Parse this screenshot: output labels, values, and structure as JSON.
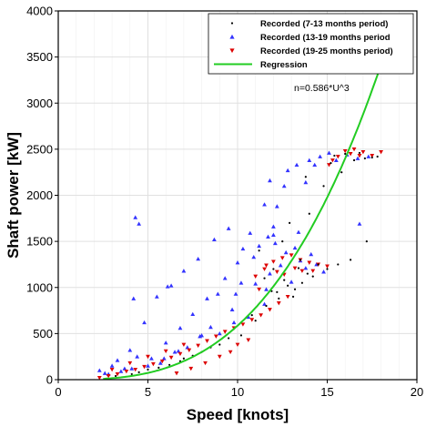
{
  "chart_data": {
    "type": "scatter",
    "xlabel": "Speed [knots]",
    "ylabel": "Shaft power [kW]",
    "xlim": [
      0,
      20
    ],
    "ylim": [
      0,
      4000
    ],
    "xticks": [
      0,
      5,
      10,
      15,
      20
    ],
    "yticks": [
      0,
      500,
      1000,
      1500,
      2000,
      2500,
      3000,
      3500,
      4000
    ],
    "grid": true,
    "legend_position": "top-right",
    "annotation": "n=0.586*U^3",
    "colors": {
      "recorded_7_13": "#000000",
      "recorded_13_19": "#3333ff",
      "recorded_19_25": "#dd0000",
      "regression": "#22cc22",
      "grid": "#e0e0e0"
    },
    "series": [
      {
        "name": "Recorded (7-13 months period)",
        "marker": "dot",
        "points": [
          [
            3.2,
            40
          ],
          [
            4.1,
            60
          ],
          [
            5.0,
            110
          ],
          [
            6.2,
            160
          ],
          [
            7.0,
            230
          ],
          [
            8.0,
            300
          ],
          [
            9.0,
            380
          ],
          [
            10.2,
            480
          ],
          [
            11.0,
            640
          ],
          [
            11.6,
            800
          ],
          [
            12.2,
            950
          ],
          [
            12.8,
            1020
          ],
          [
            13.1,
            900
          ],
          [
            13.6,
            1050
          ],
          [
            14.2,
            1120
          ],
          [
            15.0,
            1200
          ],
          [
            15.6,
            1250
          ],
          [
            16.3,
            1300
          ],
          [
            17.2,
            1500
          ],
          [
            12.0,
            1200
          ],
          [
            11.5,
            1100
          ],
          [
            13.5,
            1300
          ],
          [
            12.5,
            1500
          ],
          [
            14.0,
            1800
          ],
          [
            13.8,
            2200
          ],
          [
            15.2,
            2350
          ],
          [
            16.0,
            2450
          ],
          [
            17.1,
            2400
          ],
          [
            16.5,
            2380
          ],
          [
            17.8,
            2420
          ],
          [
            14.8,
            2100
          ],
          [
            15.8,
            2250
          ],
          [
            12.9,
            1700
          ],
          [
            10.8,
            700
          ],
          [
            9.5,
            450
          ],
          [
            8.5,
            350
          ],
          [
            7.5,
            260
          ],
          [
            6.8,
            200
          ],
          [
            5.6,
            130
          ],
          [
            4.5,
            80
          ],
          [
            13.2,
            980
          ],
          [
            12.6,
            1080
          ],
          [
            13.9,
            1150
          ],
          [
            11.9,
            960
          ],
          [
            15.4,
            2430
          ],
          [
            16.8,
            2460
          ],
          [
            17.5,
            2410
          ],
          [
            14.5,
            1250
          ],
          [
            12.3,
            880
          ],
          [
            13.4,
            1210
          ],
          [
            11.2,
            1400
          ]
        ]
      },
      {
        "name": "Recorded (13-19 months period",
        "marker": "triangle-up",
        "points": [
          [
            2.3,
            100
          ],
          [
            2.6,
            70
          ],
          [
            3.0,
            150
          ],
          [
            3.3,
            210
          ],
          [
            3.7,
            120
          ],
          [
            4.0,
            320
          ],
          [
            4.3,
            1760
          ],
          [
            4.5,
            1690
          ],
          [
            4.2,
            880
          ],
          [
            4.4,
            250
          ],
          [
            4.8,
            620
          ],
          [
            5.2,
            230
          ],
          [
            5.5,
            900
          ],
          [
            5.7,
            180
          ],
          [
            6.0,
            400
          ],
          [
            6.3,
            1020
          ],
          [
            6.5,
            300
          ],
          [
            6.8,
            560
          ],
          [
            7.0,
            1180
          ],
          [
            7.2,
            350
          ],
          [
            7.5,
            710
          ],
          [
            7.8,
            1310
          ],
          [
            8.0,
            480
          ],
          [
            8.3,
            880
          ],
          [
            8.7,
            1520
          ],
          [
            9.0,
            500
          ],
          [
            9.3,
            1100
          ],
          [
            9.5,
            1640
          ],
          [
            9.8,
            620
          ],
          [
            10.0,
            1270
          ],
          [
            10.3,
            1420
          ],
          [
            10.6,
            680
          ],
          [
            10.9,
            1330
          ],
          [
            11.2,
            1450
          ],
          [
            11.5,
            820
          ],
          [
            11.8,
            1150
          ],
          [
            12.1,
            1480
          ],
          [
            12.4,
            1240
          ],
          [
            12.7,
            1380
          ],
          [
            13.0,
            1060
          ],
          [
            13.2,
            1430
          ],
          [
            13.5,
            1290
          ],
          [
            13.8,
            1210
          ],
          [
            14.1,
            1360
          ],
          [
            14.4,
            1250
          ],
          [
            14.8,
            1170
          ],
          [
            12.2,
            1880
          ],
          [
            12.0,
            1660
          ],
          [
            11.7,
            1550
          ],
          [
            11.5,
            1900
          ],
          [
            12.6,
            2100
          ],
          [
            11.8,
            2160
          ],
          [
            11.6,
            980
          ],
          [
            12.8,
            2270
          ],
          [
            13.3,
            2330
          ],
          [
            14.0,
            2380
          ],
          [
            14.6,
            2420
          ],
          [
            15.1,
            2460
          ],
          [
            15.5,
            2380
          ],
          [
            16.1,
            2440
          ],
          [
            16.7,
            2400
          ],
          [
            17.3,
            2420
          ],
          [
            14.3,
            2330
          ],
          [
            13.8,
            2140
          ],
          [
            12.0,
            1570
          ],
          [
            11.0,
            1040
          ],
          [
            10.2,
            1050
          ],
          [
            9.7,
            760
          ],
          [
            8.5,
            570
          ],
          [
            7.9,
            470
          ],
          [
            6.7,
            310
          ],
          [
            5.9,
            230
          ],
          [
            5.0,
            150
          ],
          [
            4.1,
            120
          ],
          [
            3.5,
            90
          ],
          [
            2.8,
            60
          ],
          [
            16.8,
            1690
          ],
          [
            13.4,
            1600
          ],
          [
            10.7,
            1590
          ],
          [
            8.9,
            930
          ],
          [
            6.1,
            1010
          ],
          [
            9.9,
            930
          ]
        ]
      },
      {
        "name": "Recorded (19-25 months period)",
        "marker": "triangle-down",
        "points": [
          [
            2.3,
            20
          ],
          [
            2.8,
            40
          ],
          [
            3.3,
            60
          ],
          [
            3.8,
            90
          ],
          [
            4.3,
            110
          ],
          [
            4.8,
            140
          ],
          [
            5.3,
            170
          ],
          [
            5.8,
            200
          ],
          [
            6.3,
            240
          ],
          [
            6.8,
            280
          ],
          [
            7.3,
            320
          ],
          [
            7.8,
            370
          ],
          [
            8.3,
            420
          ],
          [
            8.8,
            470
          ],
          [
            9.3,
            520
          ],
          [
            9.8,
            560
          ],
          [
            10.3,
            600
          ],
          [
            10.8,
            650
          ],
          [
            11.3,
            700
          ],
          [
            11.8,
            760
          ],
          [
            12.3,
            830
          ],
          [
            12.8,
            900
          ],
          [
            11.0,
            1120
          ],
          [
            11.5,
            1200
          ],
          [
            12.0,
            1280
          ],
          [
            12.5,
            1320
          ],
          [
            13.0,
            1350
          ],
          [
            13.5,
            1300
          ],
          [
            14.0,
            1270
          ],
          [
            14.5,
            1250
          ],
          [
            15.0,
            1230
          ],
          [
            11.2,
            980
          ],
          [
            12.2,
            1170
          ],
          [
            13.2,
            1210
          ],
          [
            14.2,
            1180
          ],
          [
            15.1,
            2330
          ],
          [
            15.6,
            2420
          ],
          [
            16.0,
            2480
          ],
          [
            16.5,
            2500
          ],
          [
            17.0,
            2470
          ],
          [
            17.5,
            2430
          ],
          [
            18.0,
            2470
          ],
          [
            15.3,
            2380
          ],
          [
            16.3,
            2450
          ],
          [
            16.8,
            2430
          ],
          [
            9.0,
            250
          ],
          [
            8.2,
            180
          ],
          [
            7.4,
            120
          ],
          [
            6.6,
            70
          ],
          [
            10.0,
            380
          ],
          [
            10.6,
            430
          ],
          [
            9.6,
            300
          ],
          [
            7.0,
            380
          ],
          [
            6.0,
            310
          ],
          [
            5.0,
            250
          ],
          [
            4.0,
            180
          ],
          [
            3.0,
            110
          ],
          [
            12.6,
            1140
          ],
          [
            11.6,
            1240
          ],
          [
            13.6,
            1180
          ]
        ]
      },
      {
        "name": "Regression",
        "marker": "line",
        "coefficient": 0.586,
        "exponent": 3,
        "x_range": [
          2.5,
          18.4
        ]
      }
    ]
  }
}
